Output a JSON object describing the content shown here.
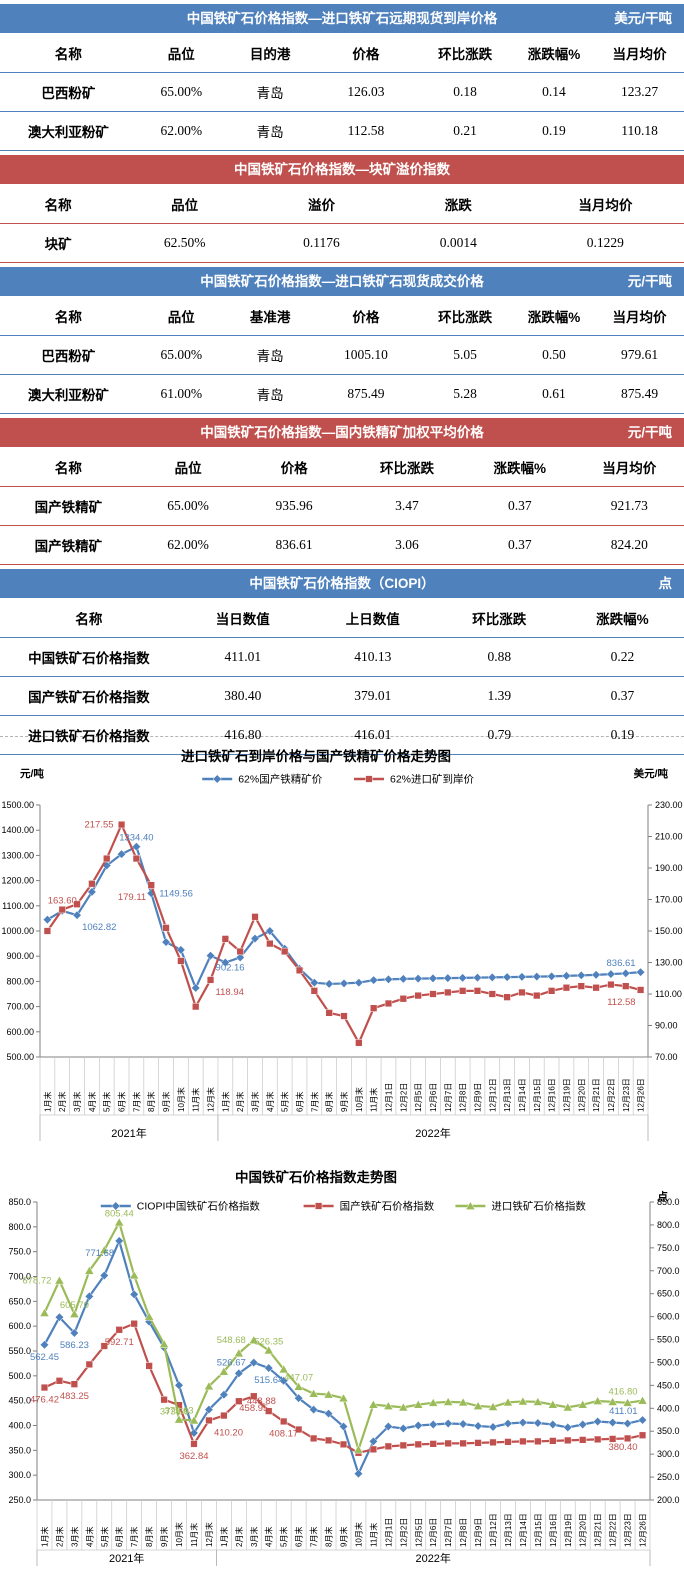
{
  "colors": {
    "blue": "#4F81BD",
    "red": "#C0504D",
    "green": "#9BBB59"
  },
  "tables": [
    {
      "theme": "blue",
      "title": "中国铁矿石价格指数—进口铁矿石远期现货到岸价格",
      "unit": "美元/干吨",
      "headers": [
        "名称",
        "品位",
        "目的港",
        "价格",
        "环比涨跌",
        "涨跌幅%",
        "当月均价"
      ],
      "rows": [
        [
          "巴西粉矿",
          "65.00%",
          "青岛",
          "126.03",
          "0.18",
          "0.14",
          "123.27"
        ],
        [
          "澳大利亚粉矿",
          "62.00%",
          "青岛",
          "112.58",
          "0.21",
          "0.19",
          "110.18"
        ]
      ]
    },
    {
      "theme": "red",
      "title": "中国铁矿石价格指数—块矿溢价指数",
      "unit": "",
      "headers": [
        "名称",
        "品位",
        "溢价",
        "涨跌",
        "当月均价"
      ],
      "rows": [
        [
          "块矿",
          "62.50%",
          "0.1176",
          "0.0014",
          "0.1229"
        ]
      ]
    },
    {
      "theme": "blue",
      "title": "中国铁矿石价格指数—进口铁矿石现货成交价格",
      "unit": "元/干吨",
      "headers": [
        "名称",
        "品位",
        "基准港",
        "价格",
        "环比涨跌",
        "涨跌幅%",
        "当月均价"
      ],
      "rows": [
        [
          "巴西粉矿",
          "65.00%",
          "青岛",
          "1005.10",
          "5.05",
          "0.50",
          "979.61"
        ],
        [
          "澳大利亚粉矿",
          "61.00%",
          "青岛",
          "875.49",
          "5.28",
          "0.61",
          "875.49"
        ]
      ]
    },
    {
      "theme": "red",
      "title": "中国铁矿石价格指数—国内铁精矿加权平均价格",
      "unit": "元/干吨",
      "headers": [
        "名称",
        "品位",
        "价格",
        "环比涨跌",
        "涨跌幅%",
        "当月均价"
      ],
      "rows": [
        [
          "国产铁精矿",
          "65.00%",
          "935.96",
          "3.47",
          "0.37",
          "921.73"
        ],
        [
          "国产铁精矿",
          "62.00%",
          "836.61",
          "3.06",
          "0.37",
          "824.20"
        ]
      ]
    },
    {
      "theme": "blue",
      "title": "中国铁矿石价格指数（CIOPI）",
      "unit": "点",
      "headers": [
        "名称",
        "当日数值",
        "上日数值",
        "环比涨跌",
        "涨跌幅%"
      ],
      "rows": [
        [
          "中国铁矿石价格指数",
          "411.01",
          "410.13",
          "0.88",
          "0.22"
        ],
        [
          "国产铁矿石价格指数",
          "380.40",
          "379.01",
          "1.39",
          "0.37"
        ],
        [
          "进口铁矿石价格指数",
          "416.80",
          "416.01",
          "0.79",
          "0.19"
        ]
      ],
      "clipped": true
    }
  ],
  "chart_data": [
    {
      "type": "line",
      "title": "进口铁矿石到岸价格与国产铁精矿价格走势图",
      "unit_left": "元/吨",
      "unit_right": "美元/吨",
      "legend_position": "top",
      "grid": false,
      "categories": [
        "1月末",
        "2月末",
        "3月末",
        "4月末",
        "5月末",
        "6月末",
        "7月末",
        "8月末",
        "9月末",
        "10月末",
        "11月末",
        "12月末",
        "1月末",
        "2月末",
        "3月末",
        "4月末",
        "5月末",
        "6月末",
        "7月末",
        "8月末",
        "9月末",
        "10月末",
        "11月末",
        "12月1日",
        "12月2日",
        "12月5日",
        "12月6日",
        "12月7日",
        "12月8日",
        "12月9日",
        "12月12日",
        "12月13日",
        "12月14日",
        "12月15日",
        "12月16日",
        "12月19日",
        "12月20日",
        "12月21日",
        "12月22日",
        "12月23日",
        "12月26日"
      ],
      "year_groups": [
        {
          "label": "2021年",
          "count": 12
        },
        {
          "label": "2022年",
          "count": 29
        }
      ],
      "axes": {
        "left": {
          "min": 500,
          "max": 1500,
          "step": 100,
          "decimals": 2
        },
        "right": {
          "min": 70,
          "max": 230,
          "step": 20,
          "decimals": 2
        }
      },
      "series": [
        {
          "name": "62%国产铁精矿价",
          "color": "#4F81BD",
          "marker": "diamond",
          "axis": "left",
          "values": [
            1045,
            1080,
            1062.82,
            1155,
            1260,
            1305,
            1334.4,
            1149.56,
            956,
            925,
            774,
            902.16,
            875,
            895,
            970,
            1000,
            930,
            850,
            795,
            790,
            792,
            795,
            805,
            808,
            810,
            811,
            812,
            813,
            814,
            815,
            816,
            817,
            818,
            819,
            820,
            822,
            824,
            826,
            829,
            832,
            836.61
          ]
        },
        {
          "name": "62%进口矿到岸价",
          "color": "#C0504D",
          "marker": "square",
          "axis": "right",
          "values": [
            150,
            163.6,
            167,
            180,
            196,
            217.55,
            196,
            179.11,
            152,
            131,
            102,
            118.94,
            145,
            137,
            159,
            142,
            137,
            125,
            112,
            98,
            96,
            79,
            101,
            104,
            107,
            109,
            110,
            111,
            112,
            112,
            110,
            108,
            111,
            109,
            112,
            114,
            115,
            114,
            116,
            115,
            112.58
          ]
        }
      ],
      "annotations": [
        {
          "s": 0,
          "i": 2,
          "text": "1062.82",
          "pos": "rb"
        },
        {
          "s": 0,
          "i": 6,
          "text": "1334.40",
          "pos": "above"
        },
        {
          "s": 0,
          "i": 7,
          "text": "1149.56",
          "pos": "right"
        },
        {
          "s": 0,
          "i": 11,
          "text": "902.16",
          "pos": "rb"
        },
        {
          "s": 0,
          "i": 40,
          "text": "836.61",
          "pos": "lu"
        },
        {
          "s": 1,
          "i": 1,
          "text": "163.60",
          "pos": "above"
        },
        {
          "s": 1,
          "i": 5,
          "text": "217.55",
          "pos": "left"
        },
        {
          "s": 1,
          "i": 7,
          "text": "179.11",
          "pos": "lb"
        },
        {
          "s": 1,
          "i": 11,
          "text": "118.94",
          "pos": "rb"
        },
        {
          "s": 1,
          "i": 40,
          "text": "112.58",
          "pos": "lb"
        }
      ]
    },
    {
      "type": "line",
      "title": "中国铁矿石价格指数走势图",
      "unit_left": "",
      "unit_right": "点",
      "legend_position": "top",
      "grid": false,
      "categories": [
        "1月末",
        "2月末",
        "3月末",
        "4月末",
        "5月末",
        "6月末",
        "7月末",
        "8月末",
        "9月末",
        "10月末",
        "11月末",
        "12月末",
        "1月末",
        "2月末",
        "3月末",
        "4月末",
        "5月末",
        "6月末",
        "7月末",
        "8月末",
        "9月末",
        "10月末",
        "11月末",
        "12月1日",
        "12月2日",
        "12月5日",
        "12月6日",
        "12月7日",
        "12月8日",
        "12月9日",
        "12月12日",
        "12月13日",
        "12月14日",
        "12月15日",
        "12月16日",
        "12月19日",
        "12月20日",
        "12月21日",
        "12月22日",
        "12月23日",
        "12月26日"
      ],
      "year_groups": [
        {
          "label": "2021年",
          "count": 12
        },
        {
          "label": "2022年",
          "count": 29
        }
      ],
      "axes": {
        "left": {
          "min": 250,
          "max": 850,
          "step": 50,
          "decimals": 1
        },
        "right": {
          "min": 200,
          "max": 850,
          "step": 50,
          "decimals": 1
        }
      },
      "series": [
        {
          "name": "CIOPI中国铁矿石价格指数",
          "color": "#4F81BD",
          "marker": "diamond",
          "axis": "left",
          "values": [
            562.45,
            618,
            586.23,
            660,
            702,
            771.68,
            664,
            609,
            557,
            481,
            385,
            432,
            462,
            505,
            526.67,
            515.64,
            490,
            455,
            432,
            424,
            398,
            303,
            368,
            398,
            394,
            400,
            402,
            404,
            403,
            399,
            397,
            404,
            406,
            405,
            402,
            396,
            402,
            408,
            406,
            404,
            411.01
          ]
        },
        {
          "name": "国产铁矿石价格指数",
          "color": "#C0504D",
          "marker": "square",
          "axis": "left",
          "values": [
            476.42,
            490,
            483.25,
            523,
            560,
            592.71,
            605,
            520,
            452,
            441,
            362.84,
            410.2,
            420,
            448.88,
            458.95,
            429,
            408.17,
            392,
            374,
            370,
            362,
            345,
            352,
            358,
            360,
            362,
            363,
            364,
            364,
            365,
            366,
            367,
            368,
            368,
            369,
            370,
            371,
            372,
            373,
            374,
            380.4
          ]
        },
        {
          "name": "进口铁矿石价格指数",
          "color": "#9BBB59",
          "marker": "triangle",
          "axis": "right",
          "values": [
            608,
            678.72,
            605.7,
            700,
            745,
            805.44,
            690,
            600,
            540,
            375.63,
            373.59,
            448,
            480,
            520,
            548.68,
            526.35,
            485,
            447.07,
            432,
            430,
            422,
            310,
            408,
            405,
            402,
            408,
            412,
            414,
            413,
            405,
            403,
            413,
            415,
            414,
            408,
            402,
            408,
            416,
            414,
            412,
            416.8
          ]
        }
      ],
      "annotations": [
        {
          "s": 0,
          "i": 0,
          "text": "562.45",
          "pos": "below"
        },
        {
          "s": 0,
          "i": 2,
          "text": "586.23",
          "pos": "below"
        },
        {
          "s": 0,
          "i": 5,
          "text": "771.68",
          "pos": "lb"
        },
        {
          "s": 0,
          "i": 14,
          "text": "526.67",
          "pos": "left"
        },
        {
          "s": 0,
          "i": 15,
          "text": "515.64",
          "pos": "below"
        },
        {
          "s": 0,
          "i": 40,
          "text": "411.01",
          "pos": "lu"
        },
        {
          "s": 1,
          "i": 0,
          "text": "476.42",
          "pos": "below"
        },
        {
          "s": 1,
          "i": 2,
          "text": "483.25",
          "pos": "below"
        },
        {
          "s": 1,
          "i": 5,
          "text": "592.71",
          "pos": "below"
        },
        {
          "s": 1,
          "i": 10,
          "text": "362.84",
          "pos": "below"
        },
        {
          "s": 1,
          "i": 11,
          "text": "410.20",
          "pos": "rb"
        },
        {
          "s": 1,
          "i": 13,
          "text": "448.88",
          "pos": "right"
        },
        {
          "s": 1,
          "i": 14,
          "text": "458.95",
          "pos": "below"
        },
        {
          "s": 1,
          "i": 16,
          "text": "408.17",
          "pos": "below"
        },
        {
          "s": 1,
          "i": 40,
          "text": "380.40",
          "pos": "lb"
        },
        {
          "s": 2,
          "i": 1,
          "text": "678.72",
          "pos": "left"
        },
        {
          "s": 2,
          "i": 2,
          "text": "605.70",
          "pos": "above"
        },
        {
          "s": 2,
          "i": 5,
          "text": "805.44",
          "pos": "above"
        },
        {
          "s": 2,
          "i": 9,
          "text": "375.63",
          "pos": "above"
        },
        {
          "s": 2,
          "i": 10,
          "text": "373.59",
          "pos": "lu"
        },
        {
          "s": 2,
          "i": 14,
          "text": "548.68",
          "pos": "left"
        },
        {
          "s": 2,
          "i": 15,
          "text": "526.35",
          "pos": "above"
        },
        {
          "s": 2,
          "i": 17,
          "text": "447.07",
          "pos": "above"
        },
        {
          "s": 2,
          "i": 40,
          "text": "416.80",
          "pos": "lu"
        }
      ]
    }
  ]
}
